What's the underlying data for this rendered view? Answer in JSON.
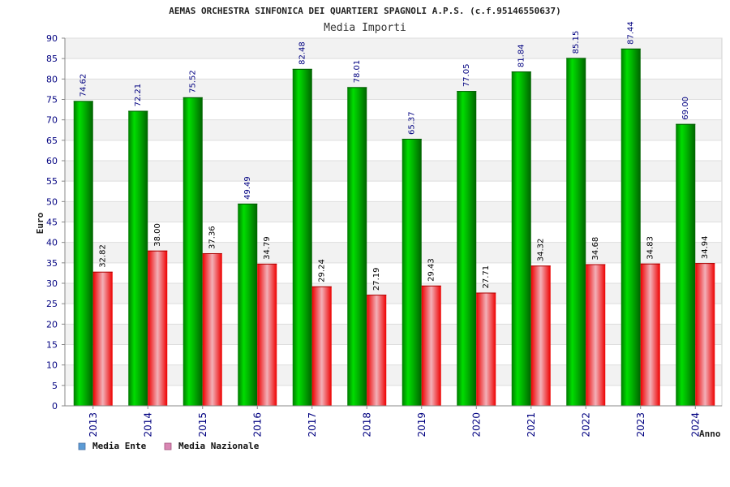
{
  "chart_data": {
    "type": "bar",
    "title": "AEMAS ORCHESTRA SINFONICA DEI QUARTIERI SPAGNOLI A.P.S. (c.f.95146550637)",
    "subtitle": "Media Importi",
    "ylabel": "Euro",
    "xlabel": "Anno",
    "ylim": [
      0,
      90
    ],
    "ytick_step": 5,
    "grid": true,
    "legend_position": "bottom-left",
    "categories": [
      "2013",
      "2014",
      "2015",
      "2016",
      "2017",
      "2018",
      "2019",
      "2020",
      "2021",
      "2022",
      "2023",
      "2024"
    ],
    "series": [
      {
        "name": "Media Ente",
        "color": "#00aa00",
        "legend_color": "#5b9bd5",
        "values": [
          74.62,
          72.21,
          75.52,
          49.49,
          82.48,
          78.01,
          65.37,
          77.05,
          81.84,
          85.15,
          87.44,
          69.0
        ],
        "labels": [
          "74.62",
          "72.21",
          "75.52",
          "49.49",
          "82.48",
          "78.01",
          "65.37",
          "77.05",
          "81.84",
          "85.15",
          "87.44",
          "69.00"
        ]
      },
      {
        "name": "Media Nazionale",
        "color": "#ee0000",
        "legend_color": "#d986b3",
        "values": [
          32.82,
          38.0,
          37.36,
          34.79,
          29.24,
          27.19,
          29.43,
          27.71,
          34.32,
          34.68,
          34.83,
          34.94
        ],
        "labels": [
          "32.82",
          "38.00",
          "37.36",
          "34.79",
          "29.24",
          "27.19",
          "29.43",
          "27.71",
          "34.32",
          "34.68",
          "34.83",
          "34.94"
        ]
      }
    ]
  }
}
